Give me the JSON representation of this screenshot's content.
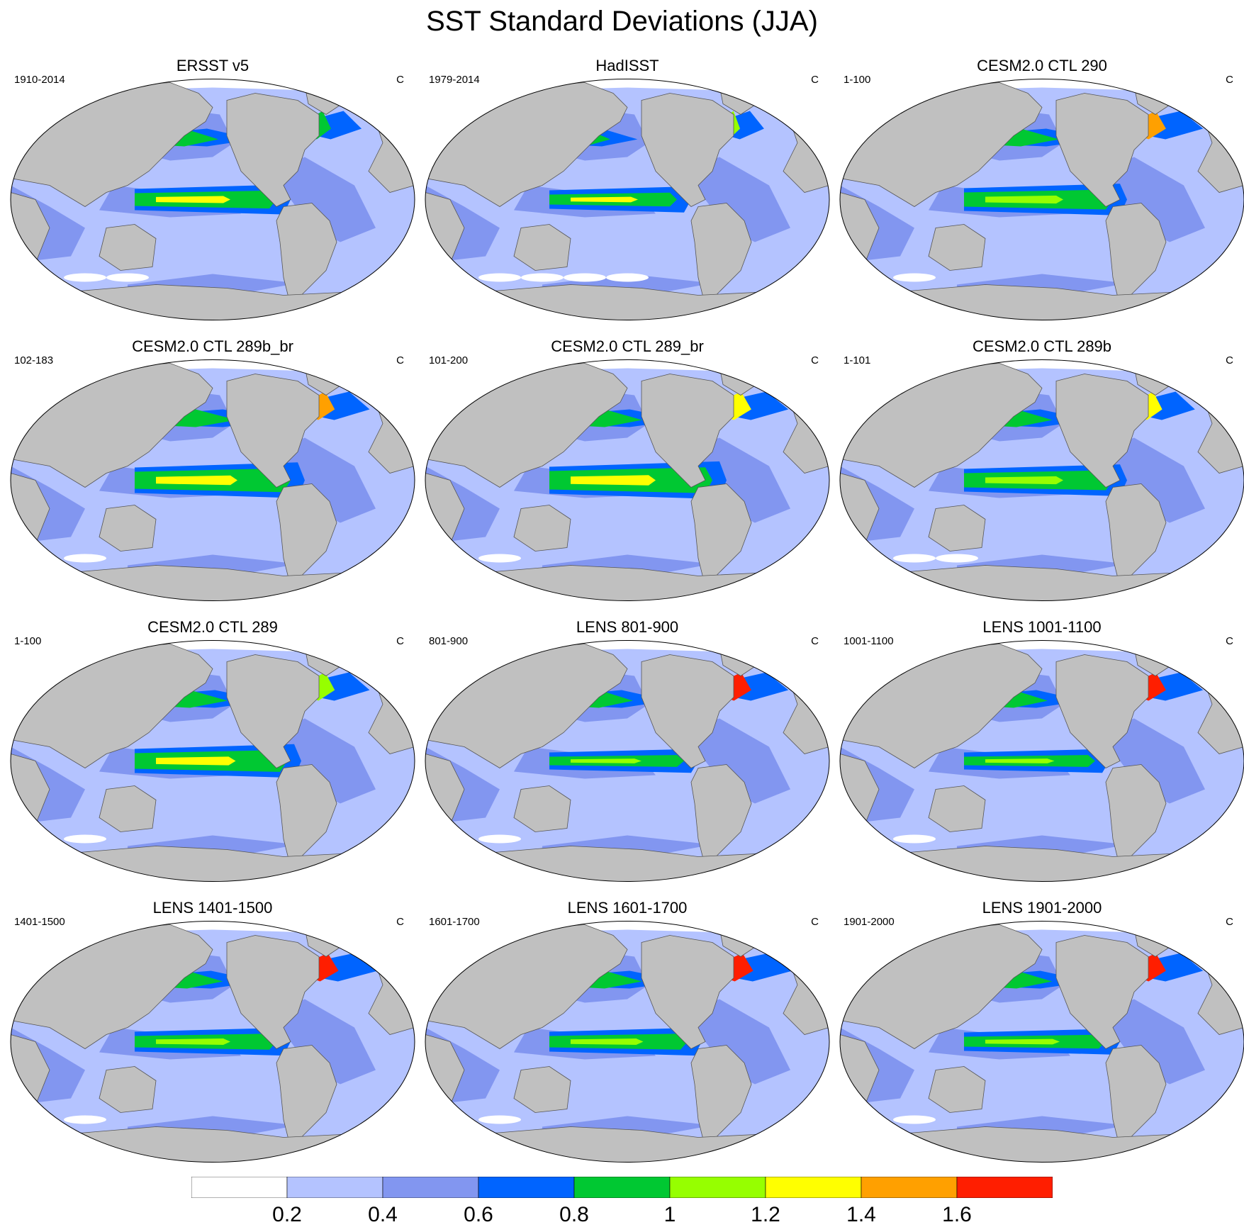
{
  "title": "SST Standard Deviations (JJA)",
  "panels": [
    {
      "title": "ERSST v5",
      "period": "1910-2014",
      "unit": "C"
    },
    {
      "title": "HadISST",
      "period": "1979-2014",
      "unit": "C"
    },
    {
      "title": "CESM2.0 CTL 290",
      "period": "1-100",
      "unit": "C"
    },
    {
      "title": "CESM2.0 CTL 289b_br",
      "period": "102-183",
      "unit": "C"
    },
    {
      "title": "CESM2.0 CTL 289_br",
      "period": "101-200",
      "unit": "C"
    },
    {
      "title": "CESM2.0 CTL 289b",
      "period": "1-101",
      "unit": "C"
    },
    {
      "title": "CESM2.0 CTL 289",
      "period": "1-100",
      "unit": "C"
    },
    {
      "title": "LENS 801-900",
      "period": "801-900",
      "unit": "C"
    },
    {
      "title": "LENS 1001-1100",
      "period": "1001-1100",
      "unit": "C"
    },
    {
      "title": "LENS 1401-1500",
      "period": "1401-1500",
      "unit": "C"
    },
    {
      "title": "LENS 1601-1700",
      "period": "1601-1700",
      "unit": "C"
    },
    {
      "title": "LENS 1901-2000",
      "period": "1901-2000",
      "unit": "C"
    }
  ],
  "colorbar": {
    "levels": [
      0.2,
      0.4,
      0.6,
      0.8,
      1,
      1.2,
      1.4,
      1.6
    ],
    "labels": [
      "0.2",
      "0.4",
      "0.6",
      "0.8",
      "1",
      "1.2",
      "1.4",
      "1.6"
    ],
    "colors": [
      "#ffffff",
      "#b4c3ff",
      "#8296f0",
      "#0064ff",
      "#00c832",
      "#96ff00",
      "#ffff00",
      "#ffa000",
      "#ff1e00"
    ]
  },
  "chart_data": {
    "type": "heatmap",
    "title": "SST Standard Deviations (JJA)",
    "projection": "global map (Winkel tripel-like), Pacific-centered",
    "unit": "C",
    "contour_levels": [
      0.2,
      0.4,
      0.6,
      0.8,
      1,
      1.2,
      1.4,
      1.6
    ],
    "layout": "4 rows x 3 columns",
    "land_color": "#c0c0c0"
  }
}
